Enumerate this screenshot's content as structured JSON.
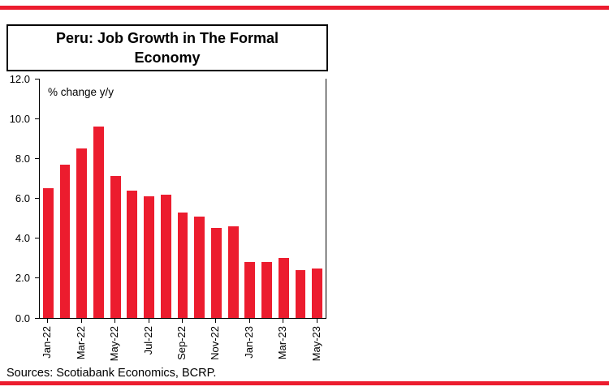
{
  "page": {
    "accent_red": "#EC1C2E",
    "axis_color": "#000000"
  },
  "chart_data": {
    "type": "bar",
    "title": "Peru: Job Growth in The Formal Economy",
    "annotation": "% change y/y",
    "categories": [
      "Jan-22",
      "Feb-22",
      "Mar-22",
      "Apr-22",
      "May-22",
      "Jun-22",
      "Jul-22",
      "Aug-22",
      "Sep-22",
      "Oct-22",
      "Nov-22",
      "Dec-22",
      "Jan-23",
      "Feb-23",
      "Mar-23",
      "Apr-23",
      "May-23"
    ],
    "values": [
      6.5,
      7.7,
      8.5,
      9.6,
      7.1,
      6.4,
      6.1,
      6.2,
      5.3,
      5.1,
      4.5,
      4.6,
      2.8,
      2.8,
      3.0,
      2.4,
      2.5
    ],
    "x_tick_labels": [
      "Jan-22",
      "Mar-22",
      "May-22",
      "Jul-22",
      "Sep-22",
      "Nov-22",
      "Jan-23",
      "Mar-23",
      "May-23"
    ],
    "x_tick_every": 2,
    "y_ticks": [
      0.0,
      2.0,
      4.0,
      6.0,
      8.0,
      10.0,
      12.0
    ],
    "ylim": [
      0,
      12
    ],
    "bar_color": "#EC1C2E",
    "grid": false,
    "legend": false
  },
  "footer": {
    "sources": "Sources:  Scotiabank Economics, BCRP."
  }
}
